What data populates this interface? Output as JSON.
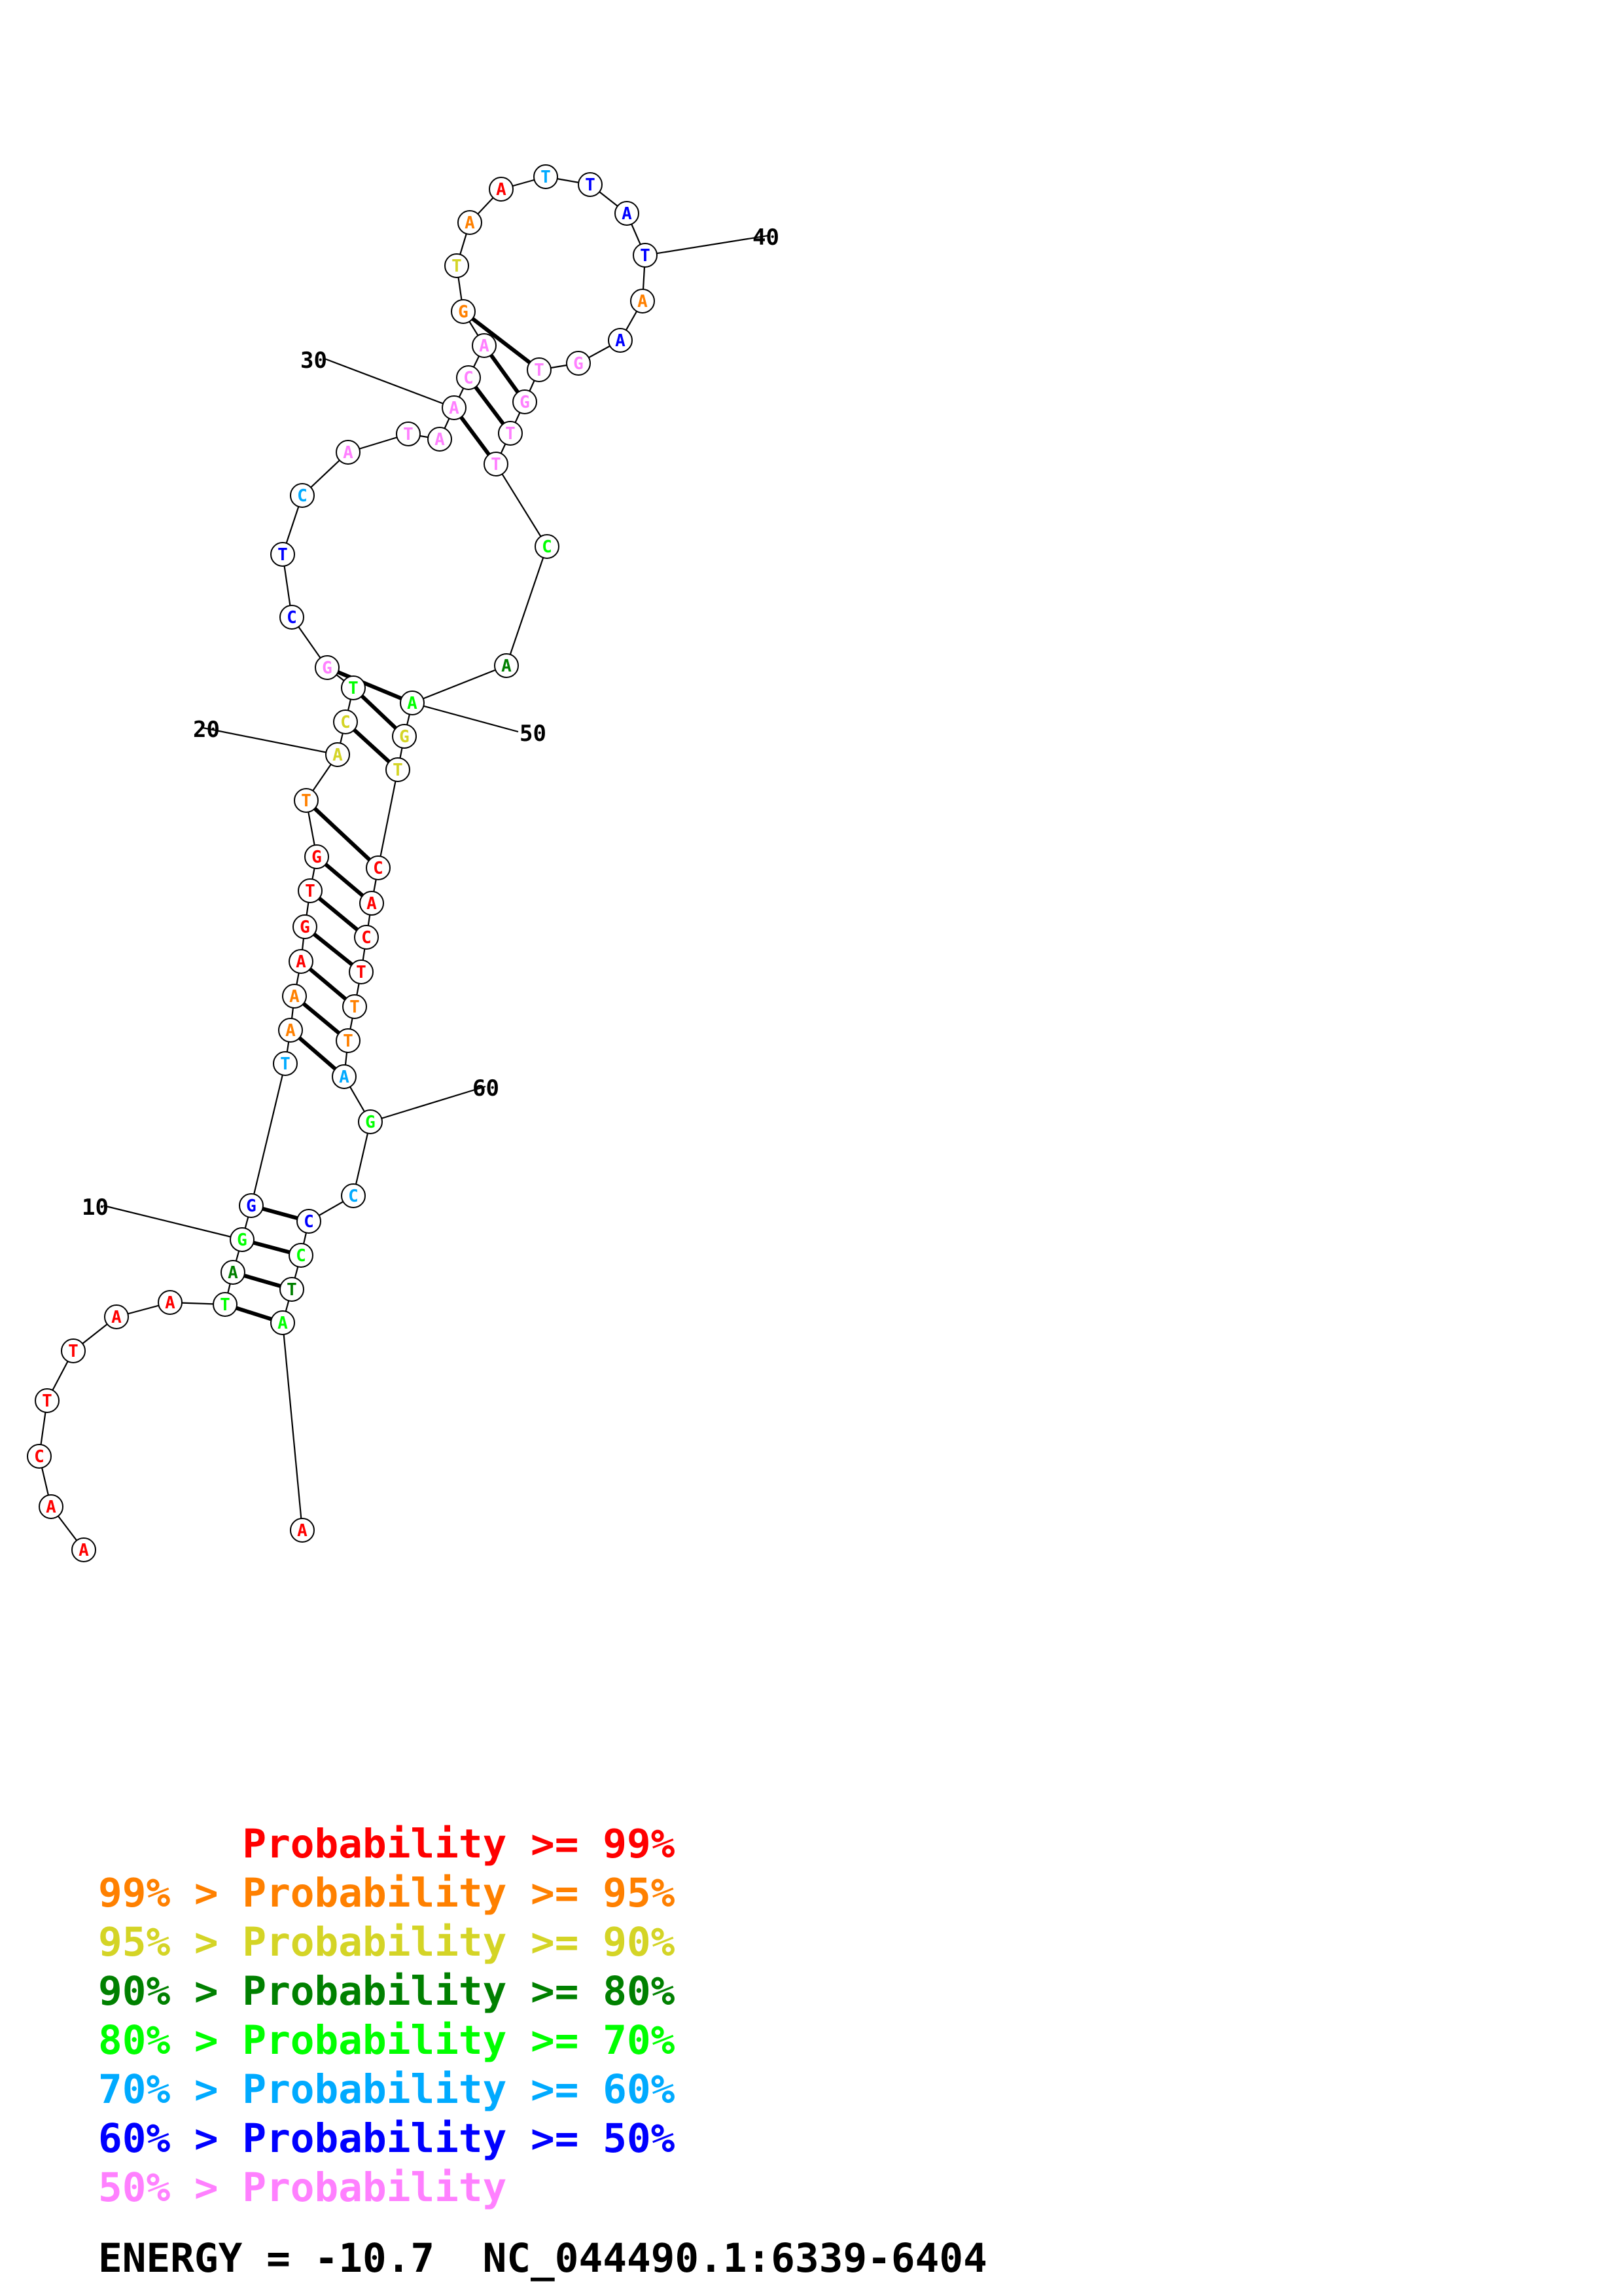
{
  "colors": {
    "p99": "#ff0000",
    "p95": "#ff8000",
    "p90": "#d4d426",
    "p80": "#008000",
    "p70": "#00ff00",
    "p60": "#00aaff",
    "p50": "#0000ff",
    "plow": "#ff80ff"
  },
  "structure": {
    "nucleotides": [
      {
        "n": 1,
        "base": "A",
        "c": "p99"
      },
      {
        "n": 2,
        "base": "A",
        "c": "p99"
      },
      {
        "n": 3,
        "base": "C",
        "c": "p99"
      },
      {
        "n": 4,
        "base": "T",
        "c": "p99"
      },
      {
        "n": 5,
        "base": "T",
        "c": "p99"
      },
      {
        "n": 6,
        "base": "A",
        "c": "p99"
      },
      {
        "n": 7,
        "base": "A",
        "c": "p99"
      },
      {
        "n": 8,
        "base": "T",
        "c": "p70"
      },
      {
        "n": 9,
        "base": "A",
        "c": "p80"
      },
      {
        "n": 10,
        "base": "G",
        "c": "p70"
      },
      {
        "n": 11,
        "base": "G",
        "c": "p50"
      },
      {
        "n": 12,
        "base": "T",
        "c": "p60"
      },
      {
        "n": 13,
        "base": "A",
        "c": "p95"
      },
      {
        "n": 14,
        "base": "A",
        "c": "p95"
      },
      {
        "n": 15,
        "base": "A",
        "c": "p99"
      },
      {
        "n": 16,
        "base": "G",
        "c": "p99"
      },
      {
        "n": 17,
        "base": "T",
        "c": "p99"
      },
      {
        "n": 18,
        "base": "G",
        "c": "p99"
      },
      {
        "n": 19,
        "base": "T",
        "c": "p95"
      },
      {
        "n": 20,
        "base": "A",
        "c": "p90"
      },
      {
        "n": 21,
        "base": "C",
        "c": "p90"
      },
      {
        "n": 22,
        "base": "T",
        "c": "p70"
      },
      {
        "n": 23,
        "base": "G",
        "c": "plow"
      },
      {
        "n": 24,
        "base": "C",
        "c": "p50"
      },
      {
        "n": 25,
        "base": "T",
        "c": "p50"
      },
      {
        "n": 26,
        "base": "C",
        "c": "p60"
      },
      {
        "n": 27,
        "base": "A",
        "c": "plow"
      },
      {
        "n": 28,
        "base": "T",
        "c": "plow"
      },
      {
        "n": 29,
        "base": "A",
        "c": "plow"
      },
      {
        "n": 30,
        "base": "A",
        "c": "plow"
      },
      {
        "n": 31,
        "base": "C",
        "c": "plow"
      },
      {
        "n": 32,
        "base": "A",
        "c": "plow"
      },
      {
        "n": 33,
        "base": "G",
        "c": "p95"
      },
      {
        "n": 34,
        "base": "T",
        "c": "p90"
      },
      {
        "n": 35,
        "base": "A",
        "c": "p95"
      },
      {
        "n": 36,
        "base": "A",
        "c": "p99"
      },
      {
        "n": 37,
        "base": "T",
        "c": "p60"
      },
      {
        "n": 38,
        "base": "T",
        "c": "p50"
      },
      {
        "n": 39,
        "base": "A",
        "c": "p50"
      },
      {
        "n": 40,
        "base": "T",
        "c": "p50"
      },
      {
        "n": 41,
        "base": "A",
        "c": "p95"
      },
      {
        "n": 42,
        "base": "A",
        "c": "p50"
      },
      {
        "n": 43,
        "base": "G",
        "c": "plow"
      },
      {
        "n": 44,
        "base": "T",
        "c": "plow"
      },
      {
        "n": 45,
        "base": "G",
        "c": "plow"
      },
      {
        "n": 46,
        "base": "T",
        "c": "plow"
      },
      {
        "n": 47,
        "base": "T",
        "c": "plow"
      },
      {
        "n": 48,
        "base": "C",
        "c": "p70"
      },
      {
        "n": 49,
        "base": "A",
        "c": "p80"
      },
      {
        "n": 50,
        "base": "A",
        "c": "p70"
      },
      {
        "n": 51,
        "base": "G",
        "c": "p90"
      },
      {
        "n": 52,
        "base": "T",
        "c": "p90"
      },
      {
        "n": 53,
        "base": "C",
        "c": "p99"
      },
      {
        "n": 54,
        "base": "A",
        "c": "p99"
      },
      {
        "n": 55,
        "base": "C",
        "c": "p99"
      },
      {
        "n": 56,
        "base": "T",
        "c": "p99"
      },
      {
        "n": 57,
        "base": "T",
        "c": "p95"
      },
      {
        "n": 58,
        "base": "T",
        "c": "p95"
      },
      {
        "n": 59,
        "base": "A",
        "c": "p60"
      },
      {
        "n": 60,
        "base": "G",
        "c": "p70"
      },
      {
        "n": 61,
        "base": "C",
        "c": "p60"
      },
      {
        "n": 62,
        "base": "C",
        "c": "p50"
      },
      {
        "n": 63,
        "base": "C",
        "c": "p70"
      },
      {
        "n": 64,
        "base": "T",
        "c": "p80"
      },
      {
        "n": 65,
        "base": "A",
        "c": "p70"
      },
      {
        "n": 66,
        "base": "A",
        "c": "p99"
      }
    ],
    "pairs": [
      [
        8,
        65
      ],
      [
        9,
        64
      ],
      [
        10,
        63
      ],
      [
        11,
        62
      ],
      [
        13,
        59
      ],
      [
        14,
        58
      ],
      [
        15,
        57
      ],
      [
        16,
        56
      ],
      [
        17,
        55
      ],
      [
        18,
        54
      ],
      [
        19,
        53
      ],
      [
        21,
        52
      ],
      [
        22,
        51
      ],
      [
        23,
        50
      ],
      [
        30,
        47
      ],
      [
        31,
        46
      ],
      [
        32,
        45
      ],
      [
        33,
        44
      ]
    ],
    "ticks": [
      {
        "n": 10,
        "label": "10"
      },
      {
        "n": 20,
        "label": "20"
      },
      {
        "n": 30,
        "label": "30"
      },
      {
        "n": 40,
        "label": "40"
      },
      {
        "n": 50,
        "label": "50"
      },
      {
        "n": 60,
        "label": "60"
      }
    ]
  },
  "legend": [
    {
      "prefix": "      ",
      "text": "Probability >= 99%",
      "c": "p99"
    },
    {
      "prefix": "99% > ",
      "text": "Probability >= 95%",
      "c": "p95"
    },
    {
      "prefix": "95% > ",
      "text": "Probability >= 90%",
      "c": "p90"
    },
    {
      "prefix": "90% > ",
      "text": "Probability >= 80%",
      "c": "p80"
    },
    {
      "prefix": "80% > ",
      "text": "Probability >= 70%",
      "c": "p70"
    },
    {
      "prefix": "70% > ",
      "text": "Probability >= 60%",
      "c": "p60"
    },
    {
      "prefix": "60% > ",
      "text": "Probability >= 50%",
      "c": "p50"
    },
    {
      "prefix": "50% > ",
      "text": "Probability",
      "c": "plow"
    }
  ],
  "footer": {
    "energy": "ENERGY = -10.7  NC_044490.1:6339-6404"
  }
}
